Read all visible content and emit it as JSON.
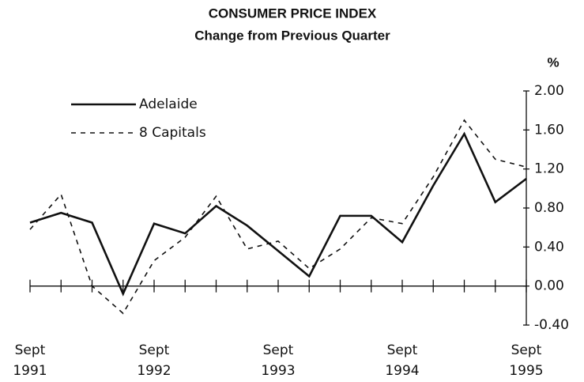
{
  "chart_data": {
    "type": "line",
    "title": "CONSUMER PRICE INDEX",
    "subtitle": "Change from Previous Quarter",
    "y_unit": "%",
    "categories": [
      "Sept 1991",
      null,
      null,
      null,
      "Sept 1992",
      null,
      null,
      null,
      "Sept 1993",
      null,
      null,
      null,
      "Sept 1994",
      null,
      null,
      null,
      "Sept 1995"
    ],
    "series": [
      {
        "name": "Adelaide",
        "color": "#111111",
        "style": "solid",
        "values": [
          0.65,
          0.75,
          0.65,
          -0.08,
          0.64,
          0.54,
          0.82,
          0.62,
          0.36,
          0.1,
          0.72,
          0.72,
          0.45,
          1.03,
          1.56,
          0.86,
          1.1
        ]
      },
      {
        "name": "8 Capitals",
        "color": "#111111",
        "style": "dashed",
        "values": [
          0.58,
          0.94,
          0.0,
          -0.28,
          0.26,
          0.5,
          0.92,
          0.38,
          0.46,
          0.18,
          0.38,
          0.7,
          0.64,
          1.12,
          1.7,
          1.3,
          1.22
        ]
      }
    ],
    "ylim": [
      -0.4,
      2.0
    ],
    "yticks": [
      {
        "value": 2.0,
        "label": "2.00"
      },
      {
        "value": 1.6,
        "label": "1.60"
      },
      {
        "value": 1.2,
        "label": "1.20"
      },
      {
        "value": 0.8,
        "label": "0.80"
      },
      {
        "value": 0.4,
        "label": "0.40"
      },
      {
        "value": 0,
        "label": "0.00"
      },
      {
        "value": -0.4,
        "label": "-0.40"
      }
    ],
    "legend": "upper left"
  }
}
